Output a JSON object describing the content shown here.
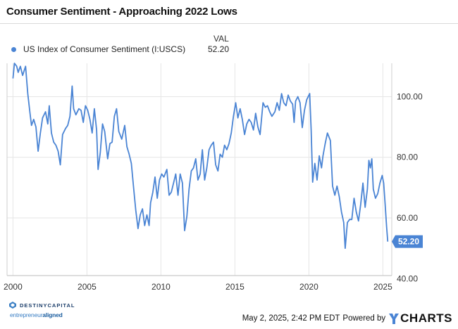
{
  "title": "Consumer Sentiment - Approaching 2022 Lows",
  "legend": {
    "column_header": "VAL",
    "series_name": "US Index of Consumer Sentiment (I:USCS)",
    "series_value": "52.20",
    "dot_color": "#4a84d4"
  },
  "chart_data": {
    "type": "line",
    "xlabel": "",
    "ylabel": "",
    "xlim": [
      1999.6,
      2025.6
    ],
    "ylim": [
      41,
      111
    ],
    "x_ticks": [
      "2000",
      "2005",
      "2010",
      "2015",
      "2020",
      "2025"
    ],
    "y_ticks": [
      "40.00",
      "60.00",
      "80.00",
      "100.00"
    ],
    "grid": true,
    "line_color": "#4a84d4",
    "last_value_label": "52.20",
    "series": [
      {
        "name": "US Index of Consumer Sentiment (I:USCS)",
        "points": [
          [
            2000.0,
            106.0
          ],
          [
            2000.1,
            111.0
          ],
          [
            2000.25,
            110.0
          ],
          [
            2000.35,
            108.0
          ],
          [
            2000.5,
            110.0
          ],
          [
            2000.65,
            107.0
          ],
          [
            2000.85,
            110.0
          ],
          [
            2001.0,
            101.0
          ],
          [
            2001.15,
            94.5
          ],
          [
            2001.25,
            90.5
          ],
          [
            2001.4,
            92.5
          ],
          [
            2001.55,
            90.0
          ],
          [
            2001.7,
            82.0
          ],
          [
            2001.85,
            88.0
          ],
          [
            2002.0,
            93.0
          ],
          [
            2002.2,
            95.0
          ],
          [
            2002.35,
            91.0
          ],
          [
            2002.45,
            97.0
          ],
          [
            2002.6,
            88.0
          ],
          [
            2002.75,
            85.0
          ],
          [
            2002.9,
            84.0
          ],
          [
            2003.05,
            82.0
          ],
          [
            2003.2,
            77.5
          ],
          [
            2003.35,
            87.5
          ],
          [
            2003.55,
            89.5
          ],
          [
            2003.7,
            90.5
          ],
          [
            2003.85,
            93.5
          ],
          [
            2004.0,
            103.5
          ],
          [
            2004.1,
            96.0
          ],
          [
            2004.25,
            94.0
          ],
          [
            2004.45,
            96.0
          ],
          [
            2004.6,
            95.5
          ],
          [
            2004.75,
            91.5
          ],
          [
            2004.9,
            97.0
          ],
          [
            2005.05,
            95.5
          ],
          [
            2005.2,
            92.5
          ],
          [
            2005.35,
            88.0
          ],
          [
            2005.5,
            96.0
          ],
          [
            2005.65,
            89.0
          ],
          [
            2005.75,
            76.0
          ],
          [
            2005.9,
            81.5
          ],
          [
            2006.05,
            91.0
          ],
          [
            2006.2,
            88.5
          ],
          [
            2006.4,
            79.5
          ],
          [
            2006.55,
            84.5
          ],
          [
            2006.7,
            85.0
          ],
          [
            2006.85,
            93.5
          ],
          [
            2007.0,
            96.0
          ],
          [
            2007.15,
            88.5
          ],
          [
            2007.35,
            86.0
          ],
          [
            2007.55,
            90.5
          ],
          [
            2007.7,
            83.5
          ],
          [
            2007.85,
            81.0
          ],
          [
            2008.0,
            78.0
          ],
          [
            2008.15,
            70.0
          ],
          [
            2008.3,
            62.5
          ],
          [
            2008.45,
            56.5
          ],
          [
            2008.6,
            61.0
          ],
          [
            2008.75,
            63.0
          ],
          [
            2008.9,
            57.5
          ],
          [
            2009.05,
            61.0
          ],
          [
            2009.2,
            57.5
          ],
          [
            2009.3,
            65.0
          ],
          [
            2009.45,
            68.5
          ],
          [
            2009.6,
            73.5
          ],
          [
            2009.75,
            66.5
          ],
          [
            2009.9,
            72.5
          ],
          [
            2010.05,
            74.5
          ],
          [
            2010.2,
            73.5
          ],
          [
            2010.4,
            76.0
          ],
          [
            2010.55,
            67.5
          ],
          [
            2010.7,
            68.5
          ],
          [
            2010.85,
            71.5
          ],
          [
            2011.0,
            74.5
          ],
          [
            2011.15,
            67.5
          ],
          [
            2011.3,
            74.5
          ],
          [
            2011.45,
            71.5
          ],
          [
            2011.6,
            55.8
          ],
          [
            2011.75,
            60.5
          ],
          [
            2011.9,
            69.5
          ],
          [
            2012.05,
            75.5
          ],
          [
            2012.2,
            76.5
          ],
          [
            2012.35,
            79.5
          ],
          [
            2012.5,
            72.5
          ],
          [
            2012.65,
            74.5
          ],
          [
            2012.8,
            82.5
          ],
          [
            2012.95,
            72.5
          ],
          [
            2013.1,
            76.5
          ],
          [
            2013.25,
            82.5
          ],
          [
            2013.4,
            84.0
          ],
          [
            2013.55,
            85.0
          ],
          [
            2013.7,
            77.5
          ],
          [
            2013.85,
            75.5
          ],
          [
            2014.0,
            81.0
          ],
          [
            2014.15,
            80.0
          ],
          [
            2014.3,
            84.0
          ],
          [
            2014.45,
            82.5
          ],
          [
            2014.6,
            84.5
          ],
          [
            2014.75,
            88.0
          ],
          [
            2014.9,
            93.5
          ],
          [
            2015.05,
            98.0
          ],
          [
            2015.2,
            93.0
          ],
          [
            2015.35,
            96.0
          ],
          [
            2015.5,
            92.5
          ],
          [
            2015.65,
            87.5
          ],
          [
            2015.8,
            91.0
          ],
          [
            2015.95,
            92.5
          ],
          [
            2016.1,
            91.5
          ],
          [
            2016.25,
            89.0
          ],
          [
            2016.4,
            94.5
          ],
          [
            2016.55,
            90.0
          ],
          [
            2016.7,
            87.5
          ],
          [
            2016.9,
            98.0
          ],
          [
            2017.05,
            96.5
          ],
          [
            2017.2,
            97.0
          ],
          [
            2017.35,
            95.0
          ],
          [
            2017.5,
            93.5
          ],
          [
            2017.7,
            95.0
          ],
          [
            2017.85,
            98.0
          ],
          [
            2018.0,
            95.5
          ],
          [
            2018.15,
            101.0
          ],
          [
            2018.3,
            98.0
          ],
          [
            2018.45,
            97.0
          ],
          [
            2018.6,
            100.5
          ],
          [
            2018.75,
            98.5
          ],
          [
            2018.9,
            97.5
          ],
          [
            2019.0,
            91.5
          ],
          [
            2019.1,
            98.5
          ],
          [
            2019.25,
            100.0
          ],
          [
            2019.4,
            98.0
          ],
          [
            2019.55,
            89.8
          ],
          [
            2019.7,
            95.5
          ],
          [
            2019.85,
            99.0
          ],
          [
            2020.05,
            101.0
          ],
          [
            2020.15,
            89.0
          ],
          [
            2020.25,
            71.8
          ],
          [
            2020.4,
            78.0
          ],
          [
            2020.55,
            72.5
          ],
          [
            2020.7,
            80.5
          ],
          [
            2020.85,
            76.5
          ],
          [
            2020.95,
            80.5
          ],
          [
            2021.1,
            84.5
          ],
          [
            2021.25,
            88.0
          ],
          [
            2021.45,
            85.5
          ],
          [
            2021.6,
            70.5
          ],
          [
            2021.75,
            67.5
          ],
          [
            2021.9,
            70.5
          ],
          [
            2022.05,
            67.0
          ],
          [
            2022.2,
            62.0
          ],
          [
            2022.35,
            58.5
          ],
          [
            2022.45,
            50.0
          ],
          [
            2022.6,
            58.5
          ],
          [
            2022.75,
            59.5
          ],
          [
            2022.9,
            59.5
          ],
          [
            2023.05,
            66.5
          ],
          [
            2023.2,
            62.0
          ],
          [
            2023.35,
            59.0
          ],
          [
            2023.5,
            64.5
          ],
          [
            2023.65,
            71.5
          ],
          [
            2023.8,
            63.5
          ],
          [
            2023.95,
            69.5
          ],
          [
            2024.05,
            79.0
          ],
          [
            2024.15,
            76.5
          ],
          [
            2024.25,
            79.5
          ],
          [
            2024.35,
            69.5
          ],
          [
            2024.5,
            66.5
          ],
          [
            2024.65,
            68.0
          ],
          [
            2024.8,
            71.5
          ],
          [
            2024.95,
            74.0
          ],
          [
            2025.05,
            71.5
          ],
          [
            2025.15,
            64.5
          ],
          [
            2025.25,
            57.0
          ],
          [
            2025.33,
            52.2
          ]
        ]
      }
    ]
  },
  "footer": {
    "timestamp": "May 2, 2025, 2:42 PM EDT",
    "powered_by": "Powered by",
    "brand": "CHARTS",
    "logo_top": "DESTINYCAPITAL",
    "logo_bottom_prefix": "entrepreneur",
    "logo_bottom_suffix": "aligned"
  }
}
